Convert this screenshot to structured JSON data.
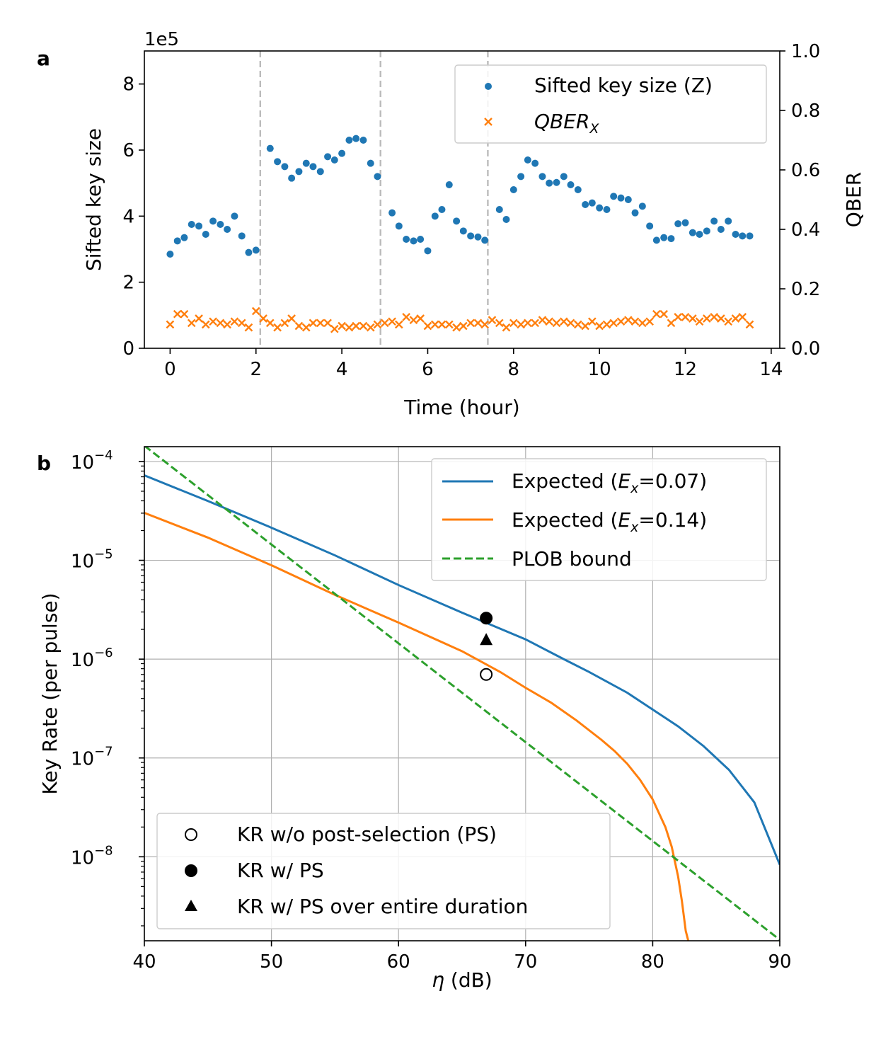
{
  "chart_data": [
    {
      "panel_label": "a",
      "type": "scatter",
      "xlabel": "Time (hour)",
      "ylabel": "Sifted key size",
      "y2label": "QBER",
      "offset_text": "1e5",
      "xlim": [
        -0.6,
        14.2
      ],
      "ylim": [
        0,
        9
      ],
      "y2lim": [
        0,
        1.0
      ],
      "xticks": [
        "0",
        "2",
        "4",
        "6",
        "8",
        "10",
        "12",
        "14"
      ],
      "yticks": [
        "0",
        "2",
        "4",
        "6",
        "8"
      ],
      "y2ticks": [
        "0.0",
        "0.2",
        "0.4",
        "0.6",
        "0.8",
        "1.0"
      ],
      "vlines": [
        2.1,
        4.9,
        7.4
      ],
      "legend": {
        "position": "upper right",
        "entries": [
          "Sifted key size (Z)",
          "QBER_X"
        ]
      },
      "series": [
        {
          "name": "Sifted key size (Z)",
          "axis": "left",
          "color": "#1f77b4",
          "marker": "circle",
          "x": [
            0.0,
            0.17,
            0.33,
            0.5,
            0.67,
            0.83,
            1.0,
            1.17,
            1.33,
            1.5,
            1.67,
            1.83,
            2.0,
            2.33,
            2.5,
            2.67,
            2.83,
            3.0,
            3.17,
            3.33,
            3.5,
            3.67,
            3.83,
            4.0,
            4.17,
            4.33,
            4.5,
            4.67,
            4.83,
            5.17,
            5.33,
            5.5,
            5.67,
            5.83,
            6.0,
            6.17,
            6.33,
            6.5,
            6.67,
            6.83,
            7.0,
            7.17,
            7.33,
            7.67,
            7.83,
            8.0,
            8.17,
            8.33,
            8.5,
            8.67,
            8.83,
            9.0,
            9.17,
            9.33,
            9.5,
            9.67,
            9.83,
            10.0,
            10.17,
            10.33,
            10.5,
            10.67,
            10.83,
            11.0,
            11.17,
            11.33,
            11.5,
            11.67,
            11.83,
            12.0,
            12.17,
            12.33,
            12.5,
            12.67,
            12.83,
            13.0,
            13.17,
            13.33,
            13.5
          ],
          "values": [
            2.85,
            3.25,
            3.35,
            3.75,
            3.7,
            3.45,
            3.85,
            3.75,
            3.6,
            4.0,
            3.4,
            2.9,
            2.97,
            6.05,
            5.65,
            5.5,
            5.15,
            5.35,
            5.6,
            5.5,
            5.35,
            5.8,
            5.7,
            5.9,
            6.3,
            6.35,
            6.3,
            5.6,
            5.2,
            4.1,
            3.7,
            3.3,
            3.25,
            3.3,
            2.95,
            4.0,
            4.2,
            4.95,
            3.85,
            3.55,
            3.4,
            3.37,
            3.27,
            4.2,
            3.9,
            4.8,
            5.2,
            5.7,
            5.6,
            5.2,
            5.0,
            5.02,
            5.2,
            4.95,
            4.8,
            4.35,
            4.4,
            4.25,
            4.2,
            4.6,
            4.55,
            4.5,
            4.1,
            4.3,
            3.7,
            3.27,
            3.35,
            3.32,
            3.77,
            3.8,
            3.5,
            3.45,
            3.55,
            3.85,
            3.6,
            3.85,
            3.45,
            3.4,
            3.4
          ]
        },
        {
          "name": "QBER_X",
          "axis": "right",
          "color": "#ff7f0e",
          "marker": "x",
          "x": [
            0.0,
            0.17,
            0.33,
            0.5,
            0.67,
            0.83,
            1.0,
            1.17,
            1.33,
            1.5,
            1.67,
            1.83,
            2.0,
            2.17,
            2.33,
            2.5,
            2.67,
            2.83,
            3.0,
            3.17,
            3.33,
            3.5,
            3.67,
            3.83,
            4.0,
            4.17,
            4.33,
            4.5,
            4.67,
            4.83,
            5.0,
            5.17,
            5.33,
            5.5,
            5.67,
            5.83,
            6.0,
            6.17,
            6.33,
            6.5,
            6.67,
            6.83,
            7.0,
            7.17,
            7.33,
            7.5,
            7.67,
            7.83,
            8.0,
            8.17,
            8.33,
            8.5,
            8.67,
            8.83,
            9.0,
            9.17,
            9.33,
            9.5,
            9.67,
            9.83,
            10.0,
            10.17,
            10.33,
            10.5,
            10.67,
            10.83,
            11.0,
            11.17,
            11.33,
            11.5,
            11.67,
            11.83,
            12.0,
            12.17,
            12.33,
            12.5,
            12.67,
            12.83,
            13.0,
            13.17,
            13.33,
            13.5
          ],
          "values": [
            0.08,
            0.115,
            0.115,
            0.085,
            0.1,
            0.08,
            0.09,
            0.085,
            0.08,
            0.09,
            0.085,
            0.07,
            0.125,
            0.1,
            0.085,
            0.07,
            0.085,
            0.1,
            0.075,
            0.07,
            0.085,
            0.085,
            0.085,
            0.065,
            0.075,
            0.07,
            0.075,
            0.075,
            0.07,
            0.08,
            0.085,
            0.09,
            0.08,
            0.105,
            0.095,
            0.1,
            0.075,
            0.08,
            0.08,
            0.08,
            0.07,
            0.075,
            0.085,
            0.085,
            0.08,
            0.095,
            0.085,
            0.07,
            0.085,
            0.08,
            0.085,
            0.085,
            0.095,
            0.09,
            0.085,
            0.09,
            0.085,
            0.08,
            0.075,
            0.09,
            0.075,
            0.08,
            0.085,
            0.09,
            0.095,
            0.09,
            0.085,
            0.09,
            0.115,
            0.115,
            0.085,
            0.105,
            0.105,
            0.1,
            0.09,
            0.1,
            0.105,
            0.1,
            0.09,
            0.1,
            0.105,
            0.08
          ]
        }
      ]
    },
    {
      "panel_label": "b",
      "type": "line",
      "xlabel": "η (dB)",
      "ylabel": "Key Rate (per pulse)",
      "xlim": [
        40,
        90
      ],
      "ylim_log10": [
        -8.85,
        -3.85
      ],
      "xticks": [
        "40",
        "50",
        "60",
        "70",
        "80",
        "90"
      ],
      "yticks": [
        {
          "base": "10",
          "exp": "−4",
          "value": -4
        },
        {
          "base": "10",
          "exp": "−5",
          "value": -5
        },
        {
          "base": "10",
          "exp": "−6",
          "value": -6
        },
        {
          "base": "10",
          "exp": "−7",
          "value": -7
        },
        {
          "base": "10",
          "exp": "−8",
          "value": -8
        }
      ],
      "grid": true,
      "legend_lines": {
        "position": "upper right",
        "entries": [
          {
            "prefix": "Expected (",
            "var": "E",
            "sub": "x",
            "suffix": "=0.07)"
          },
          {
            "prefix": "Expected (",
            "var": "E",
            "sub": "x",
            "suffix": "=0.14)"
          },
          {
            "text": "PLOB bound"
          }
        ]
      },
      "legend_points": {
        "position": "lower left",
        "entries": [
          "KR w/o post-selection (PS)",
          "KR w/ PS",
          "KR w/ PS over entire duration"
        ]
      },
      "series": [
        {
          "name": "Expected (Ex=0.07)",
          "color": "#1f77b4",
          "style": "solid",
          "x": [
            40,
            45,
            50,
            55,
            60,
            65,
            70,
            73,
            75,
            78,
            80,
            82,
            84,
            86,
            88,
            90
          ],
          "log10_values": [
            -4.14,
            -4.4,
            -4.67,
            -4.95,
            -5.25,
            -5.53,
            -5.8,
            -6.0,
            -6.13,
            -6.34,
            -6.51,
            -6.68,
            -6.88,
            -7.12,
            -7.45,
            -8.08
          ]
        },
        {
          "name": "Expected (Ex=0.14)",
          "color": "#ff7f0e",
          "style": "solid",
          "x": [
            40,
            45,
            50,
            55,
            60,
            65,
            68,
            70,
            72,
            74,
            76,
            77,
            78,
            79,
            80,
            81,
            81.5,
            82,
            82.3,
            82.6,
            82.8
          ],
          "log10_values": [
            -4.52,
            -4.77,
            -5.05,
            -5.35,
            -5.63,
            -5.92,
            -6.13,
            -6.29,
            -6.44,
            -6.62,
            -6.82,
            -6.93,
            -7.06,
            -7.22,
            -7.42,
            -7.7,
            -7.9,
            -8.2,
            -8.45,
            -8.75,
            -8.85
          ]
        },
        {
          "name": "PLOB bound",
          "color": "#2ca02c",
          "style": "dashed",
          "x": [
            40,
            90
          ],
          "log10_values": [
            -3.84,
            -8.84
          ]
        }
      ],
      "points": [
        {
          "name": "KR w/o post-selection (PS)",
          "x": 66.9,
          "value": "7e-7",
          "log10": -6.155,
          "marker": "open-circle"
        },
        {
          "name": "KR w/ PS",
          "x": 66.9,
          "value": "2.6e-6",
          "log10": -5.585,
          "marker": "filled-circle"
        },
        {
          "name": "KR w/ PS over entire duration",
          "x": 66.9,
          "value": "1.6e-6",
          "log10": -5.8,
          "marker": "filled-triangle"
        }
      ]
    }
  ]
}
